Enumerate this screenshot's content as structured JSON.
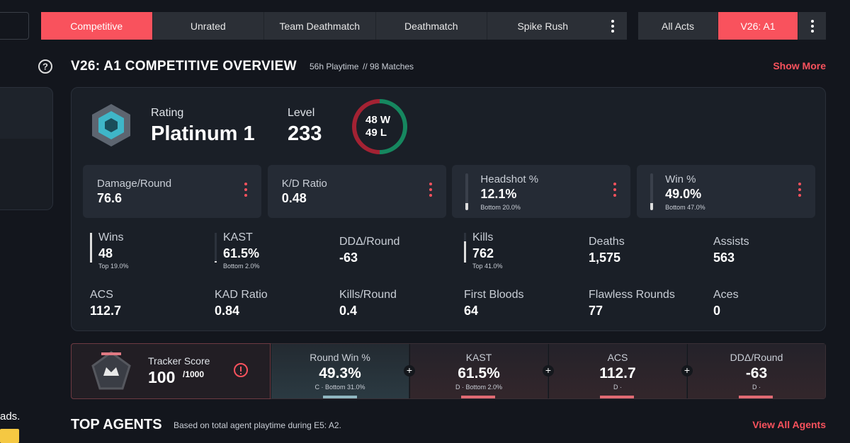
{
  "left_fragment": "ads.",
  "mode_tabs": [
    "Competitive",
    "Unrated",
    "Team Deathmatch",
    "Deathmatch",
    "Spike Rush"
  ],
  "act_tabs": [
    "All Acts",
    "V26: A1"
  ],
  "overview": {
    "title": "V26: A1 COMPETITIVE OVERVIEW",
    "playtime": "56h Playtime",
    "matches": "// 98 Matches",
    "show_more": "Show More"
  },
  "rank": {
    "rating_label": "Rating",
    "rating": "Platinum 1",
    "level_label": "Level",
    "level": "233",
    "wins": "48",
    "wins_label": "W",
    "losses": "49",
    "losses_label": "L"
  },
  "stat_cards": [
    {
      "label": "Damage/Round",
      "value": "76.6"
    },
    {
      "label": "K/D Ratio",
      "value": "0.48"
    },
    {
      "label": "Headshot %",
      "value": "12.1%",
      "sub": "Bottom 20.0%"
    },
    {
      "label": "Win %",
      "value": "49.0%",
      "sub": "Bottom 47.0%"
    }
  ],
  "stats": [
    {
      "label": "Wins",
      "value": "48",
      "sub": "Top 19.0%"
    },
    {
      "label": "KAST",
      "value": "61.5%",
      "sub": "Bottom 2.0%"
    },
    {
      "label": "DDΔ/Round",
      "value": "-63"
    },
    {
      "label": "Kills",
      "value": "762",
      "sub": "Top 41.0%"
    },
    {
      "label": "Deaths",
      "value": "1,575"
    },
    {
      "label": "Assists",
      "value": "563"
    },
    {
      "label": "ACS",
      "value": "112.7"
    },
    {
      "label": "KAD Ratio",
      "value": "0.84"
    },
    {
      "label": "Kills/Round",
      "value": "0.4"
    },
    {
      "label": "First Bloods",
      "value": "64"
    },
    {
      "label": "Flawless Rounds",
      "value": "77"
    },
    {
      "label": "Aces",
      "value": "0"
    }
  ],
  "tracker": {
    "label": "Tracker Score",
    "score": "100",
    "max": "/1000",
    "metrics": [
      {
        "label": "Round Win %",
        "value": "49.3%",
        "sub": "C · Bottom 31.0%"
      },
      {
        "label": "KAST",
        "value": "61.5%",
        "sub": "D · Bottom 2.0%"
      },
      {
        "label": "ACS",
        "value": "112.7",
        "sub": "D ·"
      },
      {
        "label": "DDΔ/Round",
        "value": "-63",
        "sub": "D ·"
      }
    ]
  },
  "top_agents": {
    "title": "TOP AGENTS",
    "note": "Based on total agent playtime during E5: A2.",
    "link": "View All Agents"
  }
}
